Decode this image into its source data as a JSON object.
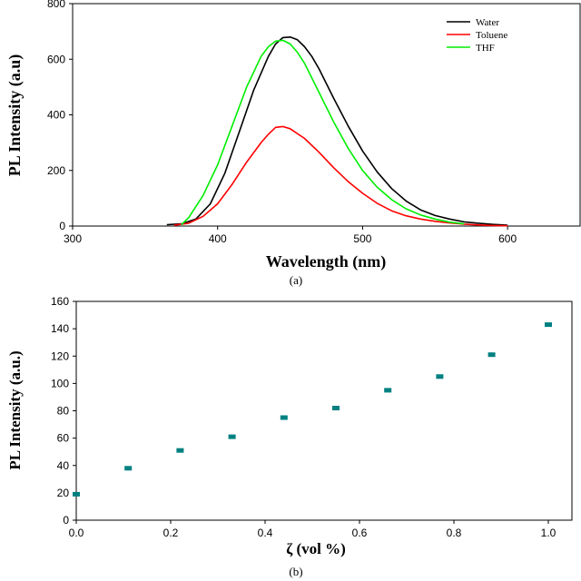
{
  "chart_data": [
    {
      "type": "line",
      "caption": "(a)",
      "xlabel": "Wavelength (nm)",
      "ylabel": "PL Intensity (a.u)",
      "xlim": [
        300,
        650
      ],
      "ylim": [
        0,
        800
      ],
      "xticks": [
        300,
        400,
        500,
        600
      ],
      "yticks": [
        0,
        200,
        400,
        600,
        800
      ],
      "legend_position": "top-right",
      "series": [
        {
          "name": "Water",
          "color": "#000000",
          "x": [
            365,
            375,
            385,
            395,
            405,
            415,
            425,
            435,
            440,
            445,
            450,
            455,
            460,
            465,
            470,
            480,
            490,
            500,
            510,
            520,
            530,
            540,
            550,
            560,
            570,
            580,
            590,
            600
          ],
          "y": [
            5,
            8,
            25,
            80,
            190,
            340,
            490,
            610,
            655,
            678,
            680,
            670,
            645,
            610,
            565,
            460,
            360,
            270,
            195,
            135,
            90,
            58,
            38,
            25,
            15,
            10,
            6,
            3
          ]
        },
        {
          "name": "Toluene",
          "color": "#ff0000",
          "x": [
            370,
            380,
            390,
            400,
            410,
            420,
            430,
            435,
            440,
            445,
            450,
            460,
            470,
            480,
            490,
            500,
            510,
            520,
            530,
            540,
            550,
            560,
            570,
            580,
            590,
            600
          ],
          "y": [
            3,
            10,
            35,
            80,
            150,
            230,
            300,
            330,
            355,
            358,
            350,
            315,
            265,
            210,
            160,
            118,
            82,
            55,
            37,
            25,
            17,
            11,
            7,
            4,
            2,
            1
          ]
        },
        {
          "name": "THF",
          "color": "#00ee00",
          "x": [
            375,
            380,
            390,
            400,
            410,
            420,
            430,
            435,
            440,
            445,
            450,
            455,
            460,
            470,
            480,
            490,
            500,
            510,
            520,
            530,
            540,
            550,
            560,
            570
          ],
          "y": [
            5,
            30,
            110,
            220,
            360,
            500,
            610,
            645,
            665,
            668,
            655,
            625,
            585,
            480,
            375,
            280,
            200,
            140,
            95,
            62,
            40,
            25,
            14,
            8
          ]
        }
      ]
    },
    {
      "type": "scatter",
      "caption": "(b)",
      "xlabel": "ζ (vol %)",
      "ylabel": "PL Intensity (a.u.)",
      "xlim": [
        0,
        1.05
      ],
      "ylim": [
        0,
        160
      ],
      "xticks": [
        0.0,
        0.2,
        0.4,
        0.6,
        0.8,
        1.0
      ],
      "xtick_labels": [
        "0.0",
        "0.2",
        "0.4",
        "0.6",
        "0.8",
        "1.0"
      ],
      "yticks": [
        0,
        20,
        40,
        60,
        80,
        100,
        120,
        140,
        160
      ],
      "marker_color": "#008080",
      "series": [
        {
          "x": [
            0.0,
            0.11,
            0.22,
            0.33,
            0.44,
            0.55,
            0.66,
            0.77,
            0.88,
            1.0
          ],
          "y": [
            19,
            38,
            51,
            61,
            75,
            82,
            95,
            105,
            121,
            143
          ]
        }
      ]
    }
  ]
}
